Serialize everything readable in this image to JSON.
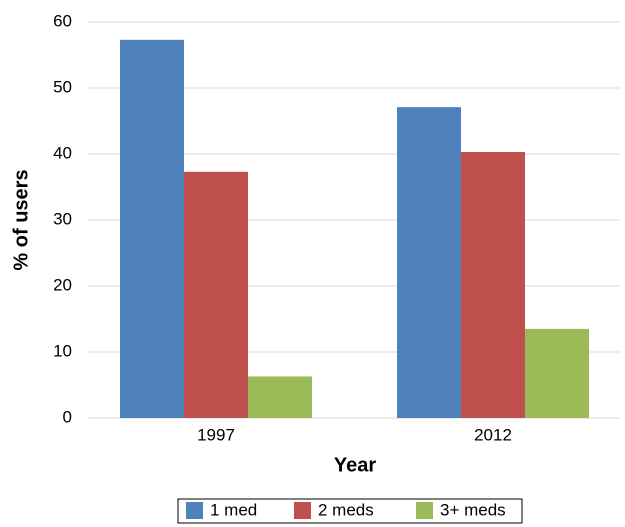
{
  "chart_data": {
    "type": "bar",
    "x_label": "Year",
    "y_label": "% of users",
    "categories": [
      "1997",
      "2012"
    ],
    "series": [
      {
        "name": "1 med",
        "color": "#4f81bd",
        "values": [
          57.3,
          47.1
        ]
      },
      {
        "name": "2 meds",
        "color": "#c0504d",
        "values": [
          37.3,
          40.3
        ]
      },
      {
        "name": "3+ meds",
        "color": "#9bbb59",
        "values": [
          6.3,
          13.5
        ]
      }
    ],
    "ylim": [
      0,
      60
    ],
    "yticks": [
      0,
      10,
      20,
      30,
      40,
      50,
      60
    ],
    "grid": true,
    "legend": "bottom"
  }
}
